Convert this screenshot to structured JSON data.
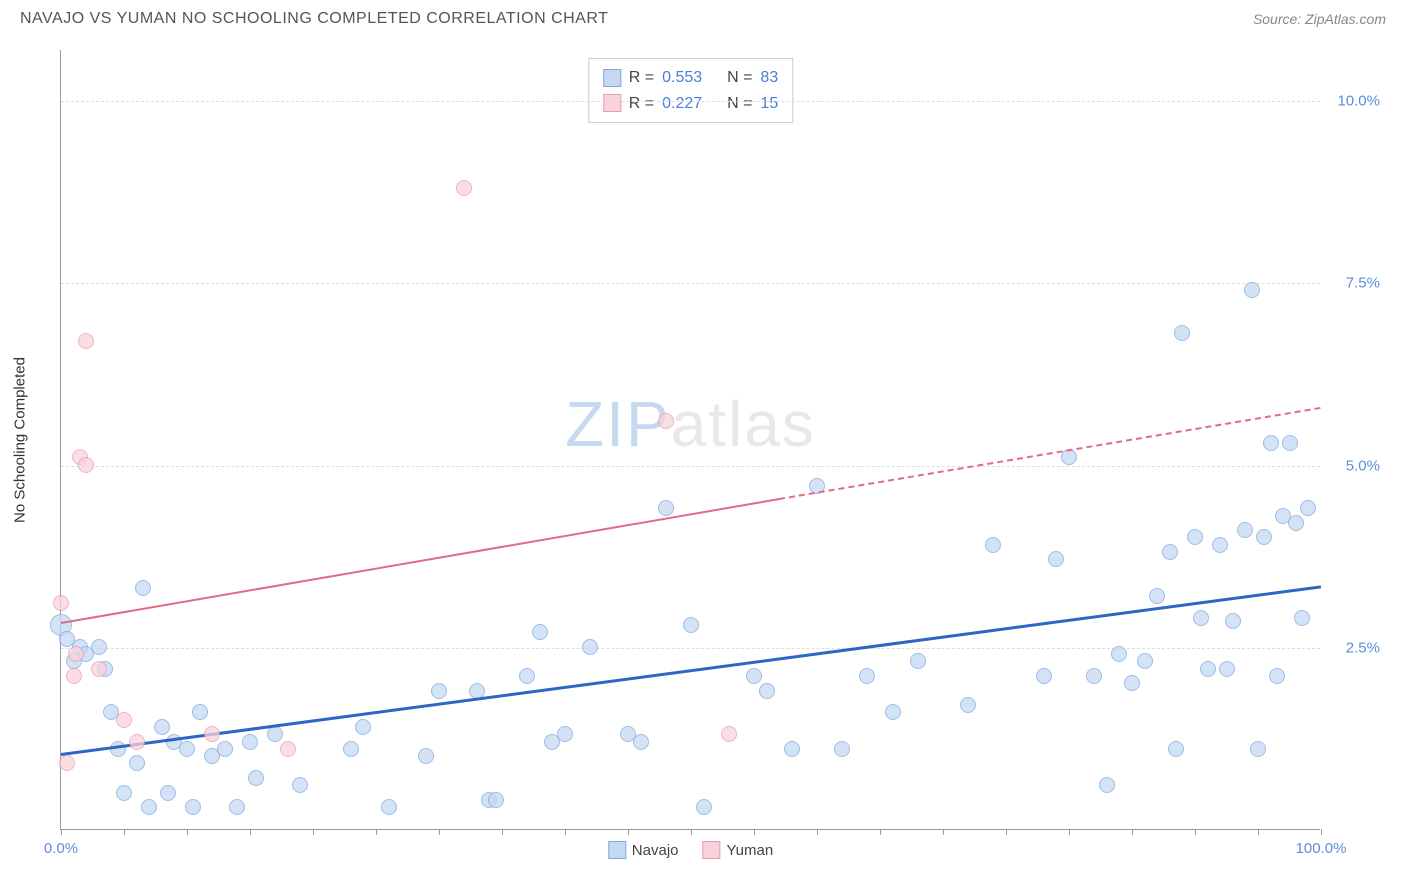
{
  "header": {
    "title": "NAVAJO VS YUMAN NO SCHOOLING COMPLETED CORRELATION CHART",
    "source_prefix": "Source:",
    "source_name": "ZipAtlas.com"
  },
  "watermark": {
    "part1": "ZIP",
    "part2": "atlas"
  },
  "chart": {
    "type": "scatter",
    "ylabel": "No Schooling Completed",
    "xlim": [
      0,
      100
    ],
    "ylim": [
      0,
      10.7
    ],
    "background_color": "#ffffff",
    "grid_color": "#dddddd",
    "axis_color": "#999999",
    "label_fontsize": 15,
    "tick_label_color": "#5b8fd6",
    "yticks": [
      {
        "value": 2.5,
        "label": "2.5%"
      },
      {
        "value": 5.0,
        "label": "5.0%"
      },
      {
        "value": 7.5,
        "label": "7.5%"
      },
      {
        "value": 10.0,
        "label": "10.0%"
      }
    ],
    "xticks_minor": [
      0,
      5,
      10,
      15,
      20,
      25,
      30,
      35,
      40,
      45,
      50,
      55,
      60,
      65,
      70,
      75,
      80,
      85,
      90,
      95,
      100
    ],
    "xtick_labels": [
      {
        "value": 0,
        "label": "0.0%"
      },
      {
        "value": 100,
        "label": "100.0%"
      }
    ],
    "stats_box": {
      "rows": [
        {
          "swatch_fill": "#c5d9f1",
          "swatch_border": "#7fa9e0",
          "r_label": "R =",
          "r_value": "0.553",
          "n_label": "N =",
          "n_value": "83"
        },
        {
          "swatch_fill": "#f9d3db",
          "swatch_border": "#e89bb0",
          "r_label": "R =",
          "r_value": "0.227",
          "n_label": "N =",
          "n_value": "15"
        }
      ]
    },
    "bottom_legend": [
      {
        "label": "Navajo",
        "swatch_fill": "#c5d9f1",
        "swatch_border": "#7fa9e0"
      },
      {
        "label": "Yuman",
        "swatch_fill": "#f9d3db",
        "swatch_border": "#e89bb0"
      }
    ],
    "series": [
      {
        "name": "Navajo",
        "marker_fill": "#c5d9f1",
        "marker_border": "#7fa9e0",
        "marker_opacity": 0.75,
        "marker_size": 16,
        "trend_line_color": "#2f66c4",
        "trend_line_width": 3,
        "trend_solid": {
          "x1": 0,
          "y1": 1.05,
          "x2": 100,
          "y2": 3.35
        },
        "points": [
          {
            "x": 0,
            "y": 2.8,
            "s": 22
          },
          {
            "x": 0.5,
            "y": 2.6
          },
          {
            "x": 1,
            "y": 2.3
          },
          {
            "x": 1.5,
            "y": 2.5
          },
          {
            "x": 2,
            "y": 2.4
          },
          {
            "x": 3,
            "y": 2.5
          },
          {
            "x": 3.5,
            "y": 2.2
          },
          {
            "x": 4,
            "y": 1.6
          },
          {
            "x": 4.5,
            "y": 1.1
          },
          {
            "x": 5,
            "y": 0.5
          },
          {
            "x": 6,
            "y": 0.9
          },
          {
            "x": 6.5,
            "y": 3.3
          },
          {
            "x": 7,
            "y": 0.3
          },
          {
            "x": 8,
            "y": 1.4
          },
          {
            "x": 8.5,
            "y": 0.5
          },
          {
            "x": 9,
            "y": 1.2
          },
          {
            "x": 10,
            "y": 1.1
          },
          {
            "x": 10.5,
            "y": 0.3
          },
          {
            "x": 11,
            "y": 1.6
          },
          {
            "x": 12,
            "y": 1.0
          },
          {
            "x": 13,
            "y": 1.1
          },
          {
            "x": 14,
            "y": 0.3
          },
          {
            "x": 15,
            "y": 1.2
          },
          {
            "x": 15.5,
            "y": 0.7
          },
          {
            "x": 17,
            "y": 1.3
          },
          {
            "x": 19,
            "y": 0.6
          },
          {
            "x": 23,
            "y": 1.1
          },
          {
            "x": 24,
            "y": 1.4
          },
          {
            "x": 26,
            "y": 0.3
          },
          {
            "x": 29,
            "y": 1.0
          },
          {
            "x": 30,
            "y": 1.9
          },
          {
            "x": 33,
            "y": 1.9
          },
          {
            "x": 34,
            "y": 0.4
          },
          {
            "x": 34.5,
            "y": 0.4
          },
          {
            "x": 37,
            "y": 2.1
          },
          {
            "x": 38,
            "y": 2.7
          },
          {
            "x": 39,
            "y": 1.2
          },
          {
            "x": 40,
            "y": 1.3
          },
          {
            "x": 42,
            "y": 2.5
          },
          {
            "x": 45,
            "y": 1.3
          },
          {
            "x": 46,
            "y": 1.2
          },
          {
            "x": 48,
            "y": 4.4
          },
          {
            "x": 50,
            "y": 2.8
          },
          {
            "x": 51,
            "y": 0.3
          },
          {
            "x": 55,
            "y": 2.1
          },
          {
            "x": 56,
            "y": 1.9
          },
          {
            "x": 58,
            "y": 1.1
          },
          {
            "x": 60,
            "y": 4.7
          },
          {
            "x": 62,
            "y": 1.1
          },
          {
            "x": 64,
            "y": 2.1
          },
          {
            "x": 66,
            "y": 1.6
          },
          {
            "x": 68,
            "y": 2.3
          },
          {
            "x": 72,
            "y": 1.7
          },
          {
            "x": 74,
            "y": 3.9
          },
          {
            "x": 78,
            "y": 2.1
          },
          {
            "x": 79,
            "y": 3.7
          },
          {
            "x": 80,
            "y": 5.1
          },
          {
            "x": 82,
            "y": 2.1
          },
          {
            "x": 83,
            "y": 0.6
          },
          {
            "x": 84,
            "y": 2.4
          },
          {
            "x": 85,
            "y": 2.0
          },
          {
            "x": 86,
            "y": 2.3
          },
          {
            "x": 87,
            "y": 3.2
          },
          {
            "x": 88,
            "y": 3.8
          },
          {
            "x": 88.5,
            "y": 1.1
          },
          {
            "x": 89,
            "y": 6.8
          },
          {
            "x": 90,
            "y": 4.0
          },
          {
            "x": 90.5,
            "y": 2.9
          },
          {
            "x": 91,
            "y": 2.2
          },
          {
            "x": 92,
            "y": 3.9
          },
          {
            "x": 92.5,
            "y": 2.2
          },
          {
            "x": 93,
            "y": 2.85
          },
          {
            "x": 94,
            "y": 4.1
          },
          {
            "x": 94.5,
            "y": 7.4
          },
          {
            "x": 95,
            "y": 1.1
          },
          {
            "x": 95.5,
            "y": 4.0
          },
          {
            "x": 96,
            "y": 5.3
          },
          {
            "x": 96.5,
            "y": 2.1
          },
          {
            "x": 97,
            "y": 4.3
          },
          {
            "x": 97.5,
            "y": 5.3
          },
          {
            "x": 98,
            "y": 4.2
          },
          {
            "x": 98.5,
            "y": 2.9
          },
          {
            "x": 99,
            "y": 4.4
          }
        ]
      },
      {
        "name": "Yuman",
        "marker_fill": "#f9d3db",
        "marker_border": "#e89bb0",
        "marker_opacity": 0.75,
        "marker_size": 16,
        "trend_line_color": "#e06b87",
        "trend_line_width": 2,
        "trend_solid": {
          "x1": 0,
          "y1": 2.85,
          "x2": 57,
          "y2": 4.55
        },
        "trend_dashed": {
          "x1": 57,
          "y1": 4.55,
          "x2": 100,
          "y2": 5.8
        },
        "points": [
          {
            "x": 0,
            "y": 3.1
          },
          {
            "x": 0.5,
            "y": 0.9
          },
          {
            "x": 1,
            "y": 2.1
          },
          {
            "x": 1.2,
            "y": 2.4
          },
          {
            "x": 1.5,
            "y": 5.1
          },
          {
            "x": 2,
            "y": 6.7
          },
          {
            "x": 2,
            "y": 5.0
          },
          {
            "x": 3,
            "y": 2.2
          },
          {
            "x": 5,
            "y": 1.5
          },
          {
            "x": 6,
            "y": 1.2
          },
          {
            "x": 12,
            "y": 1.3
          },
          {
            "x": 18,
            "y": 1.1
          },
          {
            "x": 32,
            "y": 8.8
          },
          {
            "x": 48,
            "y": 5.6
          },
          {
            "x": 53,
            "y": 1.3
          }
        ]
      }
    ]
  }
}
